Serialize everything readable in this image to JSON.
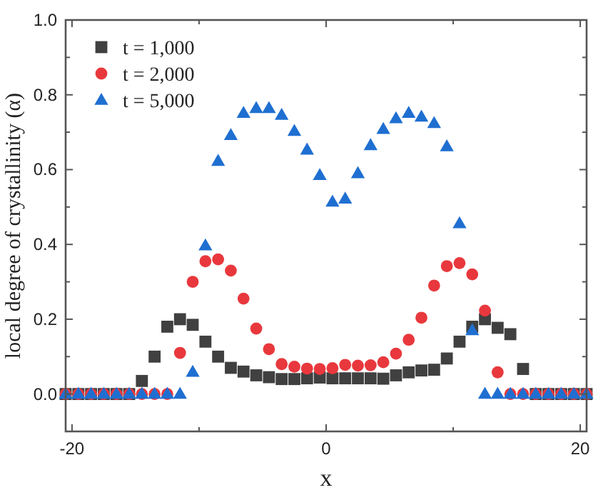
{
  "chart_data": {
    "type": "scatter",
    "xlabel": "x",
    "ylabel": "local degree of crystallinity (α)",
    "x": [
      -20.5,
      -19.5,
      -18.5,
      -17.5,
      -16.5,
      -15.5,
      -14.5,
      -13.5,
      -12.5,
      -11.5,
      -10.5,
      -9.5,
      -8.5,
      -7.5,
      -6.5,
      -5.5,
      -4.5,
      -3.5,
      -2.5,
      -1.5,
      -0.5,
      0.5,
      1.5,
      2.5,
      3.5,
      4.5,
      5.5,
      6.5,
      7.5,
      8.5,
      9.5,
      10.5,
      11.5,
      12.5,
      13.5,
      14.5,
      15.5,
      16.5,
      17.5,
      18.5,
      19.5,
      20.5
    ],
    "series": [
      {
        "name": "t = 1,000",
        "color": "#404040",
        "marker": "square",
        "values": [
          0,
          0,
          0,
          0,
          0,
          0,
          0.035,
          0.1,
          0.18,
          0.2,
          0.185,
          0.14,
          0.1,
          0.07,
          0.06,
          0.05,
          0.045,
          0.04,
          0.04,
          0.042,
          0.044,
          0.042,
          0.042,
          0.042,
          0.042,
          0.041,
          0.05,
          0.058,
          0.063,
          0.065,
          0.095,
          0.14,
          0.18,
          0.2,
          0.177,
          0.16,
          0.067,
          0,
          0,
          0,
          0,
          0
        ]
      },
      {
        "name": "t = 2,000",
        "color": "#e8383d",
        "marker": "circle",
        "values": [
          0,
          0,
          0,
          0,
          0,
          0,
          0,
          0,
          0,
          0.11,
          0.3,
          0.355,
          0.36,
          0.33,
          0.255,
          0.175,
          0.12,
          0.08,
          0.073,
          0.068,
          0.067,
          0.069,
          0.078,
          0.076,
          0.077,
          0.085,
          0.108,
          0.145,
          0.204,
          0.29,
          0.342,
          0.35,
          0.32,
          0.223,
          0.058,
          0,
          0,
          0,
          0,
          0,
          0,
          0
        ]
      },
      {
        "name": "t = 5,000",
        "color": "#1f6fd1",
        "marker": "triangle",
        "values": [
          0,
          0,
          0,
          0,
          0,
          0,
          0,
          0,
          0,
          0,
          0.059,
          0.397,
          0.623,
          0.692,
          0.751,
          0.764,
          0.764,
          0.746,
          0.703,
          0.653,
          0.585,
          0.514,
          0.522,
          0.59,
          0.665,
          0.708,
          0.737,
          0.751,
          0.741,
          0.724,
          0.662,
          0.456,
          0.17,
          0,
          0,
          0,
          0,
          0,
          0,
          0,
          0,
          0
        ]
      }
    ],
    "xlim": [
      -20.5,
      20.5
    ],
    "xticks": [
      -20,
      {
        "value": -10,
        "label": null
      },
      0,
      {
        "value": 10,
        "label": null
      },
      20
    ],
    "ylim": [
      -0.1,
      1.0
    ],
    "yticks": [
      {
        "value": -0.1,
        "label": null
      },
      {
        "value": 0,
        "label": "0.0"
      },
      {
        "value": 0.1,
        "label": null
      },
      {
        "value": 0.2,
        "label": "0.2"
      },
      {
        "value": 0.3,
        "label": null
      },
      {
        "value": 0.4,
        "label": "0.4"
      },
      {
        "value": 0.5,
        "label": null
      },
      {
        "value": 0.6,
        "label": "0.6"
      },
      {
        "value": 0.7,
        "label": null
      },
      {
        "value": 0.8,
        "label": "0.8"
      },
      {
        "value": 0.9,
        "label": null
      },
      {
        "value": 1.0,
        "label": "1.0"
      }
    ],
    "legend": "top left",
    "grid": false
  }
}
